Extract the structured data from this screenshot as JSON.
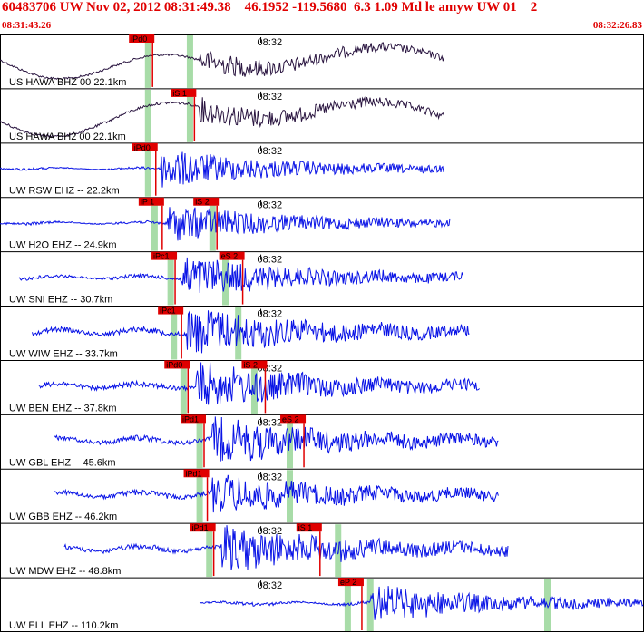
{
  "header": {
    "title": "60483706 UW Nov 02, 2012 08:31:49.38    46.1952 -119.5680  6.3 1.09 Md le amyw UW 01    2",
    "start_time": "08:31:43.26",
    "end_time": "08:32:26.83"
  },
  "colors": {
    "header_text": "#e00000",
    "broadband_trace": "#2a1540",
    "short_period_trace": "#0a14e6",
    "pick_box": "#e00000",
    "pick_line": "#e00000",
    "window_band": "#a8dca8",
    "panel_border": "#000000"
  },
  "chart_data": {
    "type": "line",
    "time_range": [
      "08:31:43.26",
      "08:32:26.83"
    ],
    "minute_tick_label": "08:32",
    "traces": [
      {
        "label": "US HAWA BHZ 00 22.1km",
        "kind": "broadband",
        "t0": 0.0,
        "t1": 0.69,
        "picks": [
          {
            "name": "iPd0",
            "t": 0.22
          }
        ],
        "windows": [
          0.23,
          0.295
        ],
        "coda_start": 0.31,
        "amp_early": 0.15,
        "amp_late": 0.55
      },
      {
        "label": "US HAWA BH2 00 22.1km",
        "kind": "broadband",
        "t0": 0.0,
        "t1": 0.69,
        "picks": [
          {
            "name": "iS 1",
            "t": 0.285
          }
        ],
        "windows": [
          0.23,
          0.295
        ],
        "coda_start": 0.31,
        "amp_early": 0.18,
        "amp_late": 0.6
      },
      {
        "label": "UW RSW EHZ -- 22.2km",
        "kind": "short",
        "t0": 0.0,
        "t1": 0.69,
        "picks": [
          {
            "name": "iPd0",
            "t": 0.225
          }
        ],
        "windows": [
          0.23
        ],
        "coda_start": 0.25,
        "amp_early": 0.03,
        "amp_late": 0.75
      },
      {
        "label": "UW H2O EHZ -- 24.9km",
        "kind": "short",
        "t0": 0.0,
        "t1": 0.7,
        "picks": [
          {
            "name": "iP 1",
            "t": 0.235
          },
          {
            "name": "iS 2",
            "t": 0.32
          }
        ],
        "windows": [
          0.24,
          0.33
        ],
        "coda_start": 0.26,
        "amp_early": 0.04,
        "amp_late": 0.7
      },
      {
        "label": "UW SNI EHZ -- 30.7km",
        "kind": "short",
        "t0": 0.03,
        "t1": 0.72,
        "picks": [
          {
            "name": "iPc1",
            "t": 0.255
          },
          {
            "name": "eS 2",
            "t": 0.36
          }
        ],
        "windows": [
          0.265,
          0.35
        ],
        "coda_start": 0.28,
        "amp_early": 0.06,
        "amp_late": 0.8
      },
      {
        "label": "UW WIW EHZ -- 33.7km",
        "kind": "short",
        "t0": 0.05,
        "t1": 0.73,
        "picks": [
          {
            "name": "iPc1",
            "t": 0.265
          }
        ],
        "windows": [
          0.27,
          0.37
        ],
        "coda_start": 0.29,
        "amp_early": 0.1,
        "amp_late": 0.9
      },
      {
        "label": "UW BEN EHZ -- 37.8km",
        "kind": "short",
        "t0": 0.06,
        "t1": 0.745,
        "picks": [
          {
            "name": "iPd0",
            "t": 0.275
          },
          {
            "name": "iS 2",
            "t": 0.395
          }
        ],
        "windows": [
          0.285,
          0.395
        ],
        "coda_start": 0.305,
        "amp_early": 0.1,
        "amp_late": 0.85
      },
      {
        "label": "UW GBL EHZ -- 45.6km",
        "kind": "short",
        "t0": 0.085,
        "t1": 0.775,
        "picks": [
          {
            "name": "iPd1",
            "t": 0.3
          },
          {
            "name": "eS 2",
            "t": 0.455
          }
        ],
        "windows": [
          0.31,
          0.45
        ],
        "coda_start": 0.33,
        "amp_early": 0.1,
        "amp_late": 0.85
      },
      {
        "label": "UW GBB EHZ -- 46.2km",
        "kind": "short",
        "t0": 0.085,
        "t1": 0.775,
        "picks": [
          {
            "name": "iPd1",
            "t": 0.305
          }
        ],
        "windows": [
          0.31,
          0.45
        ],
        "coda_start": 0.33,
        "amp_early": 0.1,
        "amp_late": 0.7
      },
      {
        "label": "UW MDW EHZ -- 48.8km",
        "kind": "short",
        "t0": 0.1,
        "t1": 0.79,
        "picks": [
          {
            "name": "iPd1",
            "t": 0.315
          },
          {
            "name": "iS 1",
            "t": 0.48
          }
        ],
        "windows": [
          0.325,
          0.525
        ],
        "coda_start": 0.345,
        "amp_early": 0.1,
        "amp_late": 0.85
      },
      {
        "label": "UW ELL EHZ -- 110.2km",
        "kind": "short",
        "t0": 0.31,
        "t1": 1.0,
        "picks": [
          {
            "name": "eP 2",
            "t": 0.545
          }
        ],
        "windows": [
          0.54,
          0.575,
          0.85
        ],
        "coda_start": 0.575,
        "amp_early": 0.05,
        "amp_late": 0.7
      }
    ]
  }
}
